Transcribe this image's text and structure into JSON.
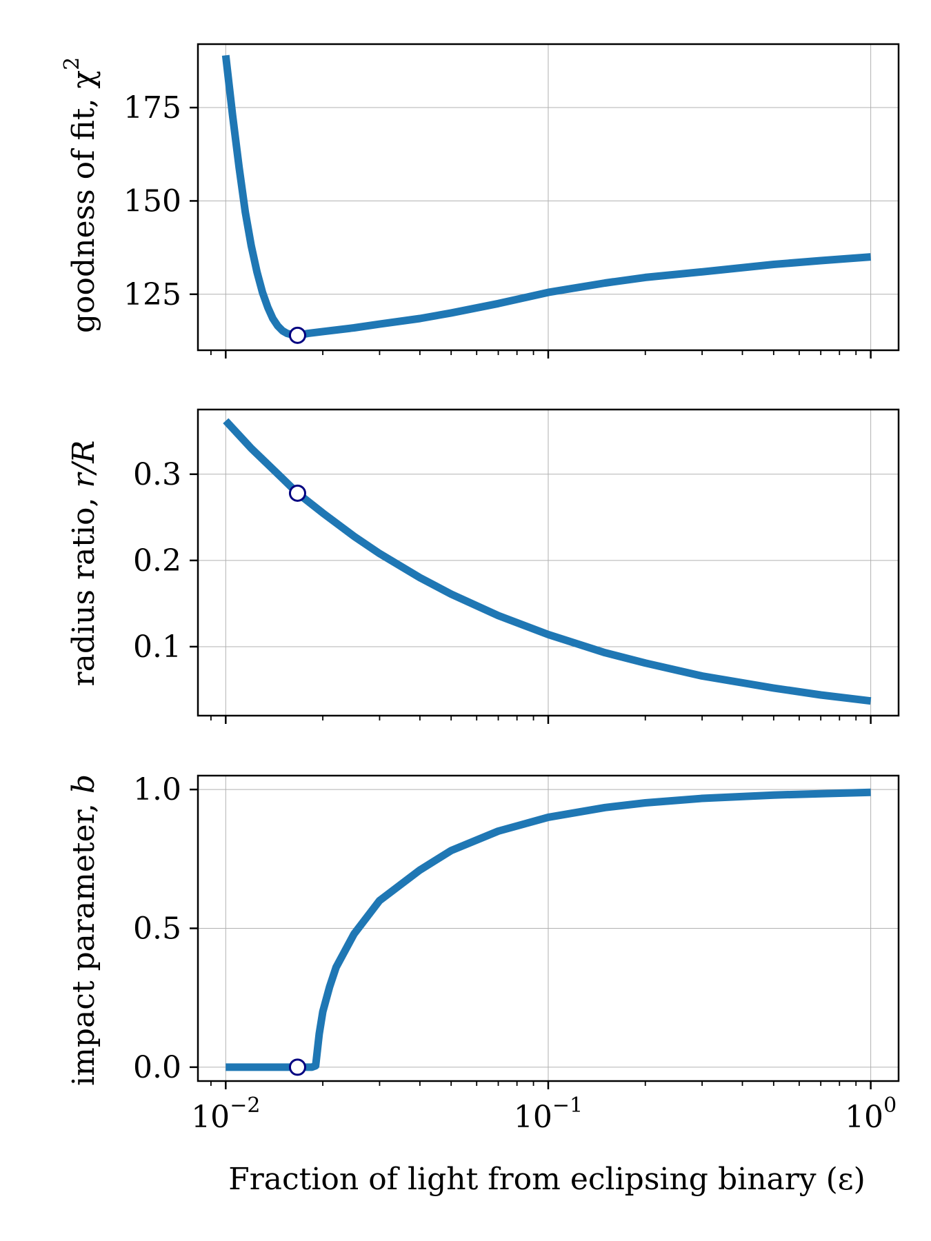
{
  "colors": {
    "line": "#1f77b4",
    "marker_edge": "#000080",
    "marker_face": "#ffffff",
    "grid": "#b0b0b0",
    "axis": "#000000"
  },
  "chart_data": {
    "type": "line",
    "xscale": "log",
    "xlabel": "Fraction of light from eclipsing binary (ε)",
    "xlim": [
      0.0082,
      1.22
    ],
    "xtick_values": [
      0.01,
      0.1,
      1
    ],
    "xtick_base_label": "10",
    "xtick_exponents": [
      "−2",
      "−1",
      "0"
    ],
    "best_fit_epsilon": 0.0167,
    "panels": [
      {
        "id": "chi2",
        "ylabel": "goodness of fit, χ",
        "ylabel_sup": "2",
        "ylim": [
          110,
          192
        ],
        "yticks": [
          125,
          150,
          175
        ],
        "ytick_labels": [
          "125",
          "150",
          "175"
        ],
        "series": {
          "name": "chi2",
          "x": [
            0.01,
            0.0105,
            0.011,
            0.0115,
            0.012,
            0.0125,
            0.013,
            0.0135,
            0.014,
            0.0145,
            0.015,
            0.0155,
            0.016,
            0.0167,
            0.018,
            0.02,
            0.025,
            0.03,
            0.04,
            0.05,
            0.07,
            0.1,
            0.15,
            0.2,
            0.3,
            0.5,
            0.7,
            1.0
          ],
          "y": [
            189,
            173,
            159,
            147,
            138,
            131,
            125.5,
            121.5,
            118.5,
            116.5,
            115.2,
            114.5,
            114.2,
            114,
            114.5,
            115,
            116,
            117,
            118.5,
            120,
            122.5,
            125.5,
            128,
            129.5,
            131,
            133,
            134,
            135
          ]
        },
        "marker": {
          "x": 0.0167,
          "y": 114
        }
      },
      {
        "id": "radius_ratio",
        "ylabel": "radius ratio, ",
        "ylabel_italic": "r/R",
        "ylim": [
          0.02,
          0.375
        ],
        "yticks": [
          0.1,
          0.2,
          0.3
        ],
        "ytick_labels": [
          "0.1",
          "0.2",
          "0.3"
        ],
        "series": {
          "name": "r/R",
          "x": [
            0.01,
            0.012,
            0.015,
            0.0167,
            0.02,
            0.025,
            0.03,
            0.04,
            0.05,
            0.07,
            0.1,
            0.15,
            0.2,
            0.3,
            0.5,
            0.7,
            1.0
          ],
          "y": [
            0.362,
            0.33,
            0.295,
            0.278,
            0.255,
            0.228,
            0.208,
            0.18,
            0.161,
            0.136,
            0.114,
            0.093,
            0.081,
            0.066,
            0.052,
            0.044,
            0.037
          ]
        },
        "marker": {
          "x": 0.0167,
          "y": 0.278
        }
      },
      {
        "id": "impact_parameter",
        "ylabel": "impact parameter, ",
        "ylabel_italic": "b",
        "ylim": [
          -0.05,
          1.05
        ],
        "yticks": [
          0.0,
          0.5,
          1.0
        ],
        "ytick_labels": [
          "0.0",
          "0.5",
          "1.0"
        ],
        "series": {
          "name": "b",
          "x": [
            0.01,
            0.015,
            0.0185,
            0.019,
            0.0195,
            0.02,
            0.021,
            0.022,
            0.025,
            0.03,
            0.04,
            0.05,
            0.07,
            0.1,
            0.15,
            0.2,
            0.3,
            0.5,
            0.7,
            1.0
          ],
          "y": [
            0,
            0,
            0,
            0.005,
            0.12,
            0.2,
            0.29,
            0.36,
            0.48,
            0.6,
            0.71,
            0.78,
            0.85,
            0.9,
            0.935,
            0.952,
            0.968,
            0.98,
            0.985,
            0.99
          ]
        },
        "marker": {
          "x": 0.0167,
          "y": 0.0
        }
      }
    ]
  }
}
